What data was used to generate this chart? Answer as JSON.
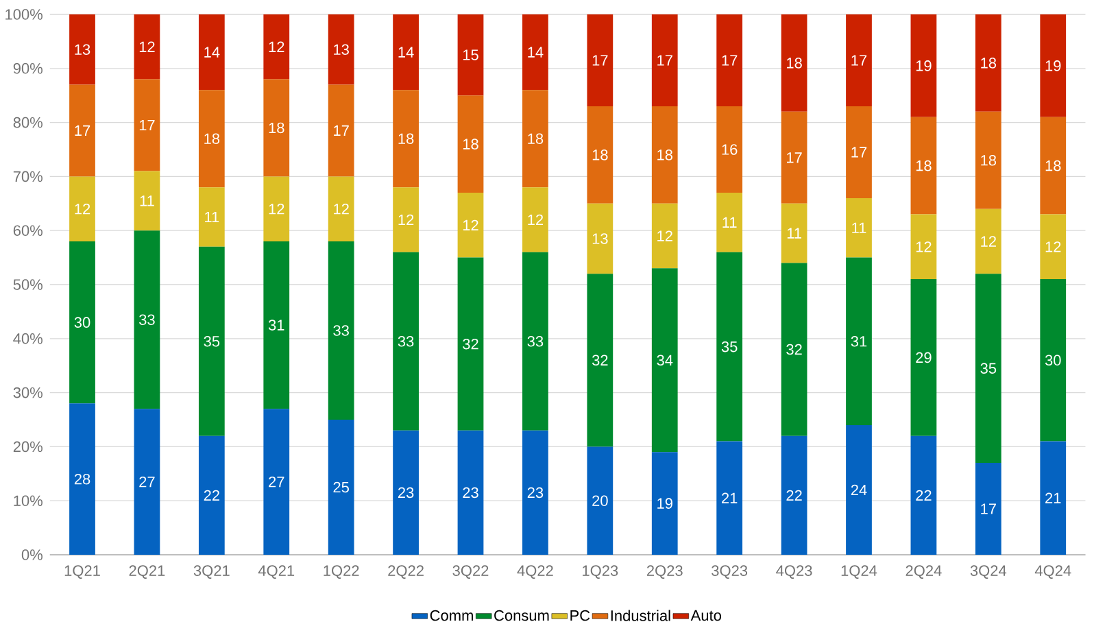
{
  "chart_data": {
    "type": "bar",
    "stacked": true,
    "categories": [
      "1Q21",
      "2Q21",
      "3Q21",
      "4Q21",
      "1Q22",
      "2Q22",
      "3Q22",
      "4Q22",
      "1Q23",
      "2Q23",
      "3Q23",
      "4Q23",
      "1Q24",
      "2Q24",
      "3Q24",
      "4Q24"
    ],
    "series": [
      {
        "name": "Comm",
        "color": "#0563c1",
        "values": [
          28,
          27,
          22,
          27,
          25,
          23,
          23,
          23,
          20,
          19,
          21,
          22,
          24,
          22,
          17,
          21
        ]
      },
      {
        "name": "Consum",
        "color": "#008a2e",
        "values": [
          30,
          33,
          35,
          31,
          33,
          33,
          32,
          33,
          32,
          34,
          35,
          32,
          31,
          29,
          35,
          30
        ]
      },
      {
        "name": "PC",
        "color": "#dcbf26",
        "values": [
          12,
          11,
          11,
          12,
          12,
          12,
          12,
          12,
          13,
          12,
          11,
          11,
          11,
          12,
          12,
          12
        ]
      },
      {
        "name": "Industrial",
        "color": "#e06b10",
        "values": [
          17,
          17,
          18,
          18,
          17,
          18,
          18,
          18,
          18,
          18,
          16,
          17,
          17,
          18,
          18,
          18
        ]
      },
      {
        "name": "Auto",
        "color": "#cc2200",
        "values": [
          13,
          12,
          14,
          12,
          13,
          14,
          15,
          14,
          17,
          17,
          17,
          18,
          17,
          19,
          18,
          19
        ]
      }
    ],
    "ylim": [
      0,
      100
    ],
    "yticks": [
      {
        "value": 0,
        "label": "0%"
      },
      {
        "value": 10,
        "label": "10%"
      },
      {
        "value": 20,
        "label": "20%"
      },
      {
        "value": 30,
        "label": "30%"
      },
      {
        "value": 40,
        "label": "40%"
      },
      {
        "value": 50,
        "label": "50%"
      },
      {
        "value": 60,
        "label": "60%"
      },
      {
        "value": 70,
        "label": "70%"
      },
      {
        "value": 80,
        "label": "80%"
      },
      {
        "value": 90,
        "label": "90%"
      },
      {
        "value": 100,
        "label": "100%"
      }
    ],
    "grid": "y",
    "legend": "bottom",
    "data_labels": true
  }
}
